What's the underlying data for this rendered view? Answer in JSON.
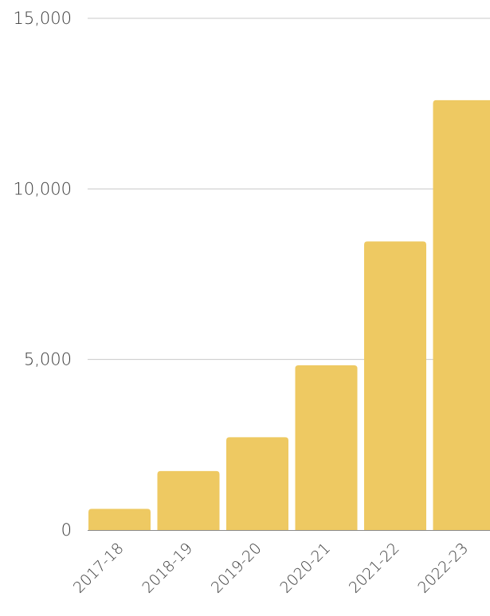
{
  "chart_data": {
    "type": "bar",
    "categories": [
      "2017-18",
      "2018-19",
      "2019-20",
      "2020-21",
      "2021-22",
      "2022-23"
    ],
    "values": [
      620,
      1730,
      2720,
      4830,
      8460,
      12600
    ],
    "ylim": [
      0,
      15000
    ],
    "yticks": [
      0,
      5000,
      10000,
      15000
    ],
    "ytick_labels": [
      "0",
      "5,000",
      "10,000",
      "15,000"
    ],
    "grid": true,
    "bar_color": "#EEC962",
    "title": "",
    "xlabel": "",
    "ylabel": ""
  }
}
